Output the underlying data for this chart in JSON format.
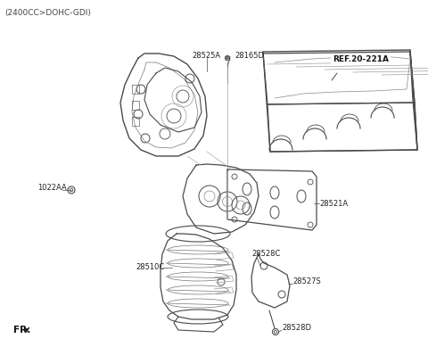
{
  "bg_color": "#ffffff",
  "line_color": "#4a4a4a",
  "label_color": "#222222",
  "title_text": "(2400CC>DOHC-GDI)",
  "fr_text": "FR.",
  "ref_label": "REF.20-221A",
  "figsize": [
    4.8,
    3.89
  ],
  "dpi": 100,
  "xlim": [
    0,
    480
  ],
  "ylim": [
    0,
    389
  ]
}
